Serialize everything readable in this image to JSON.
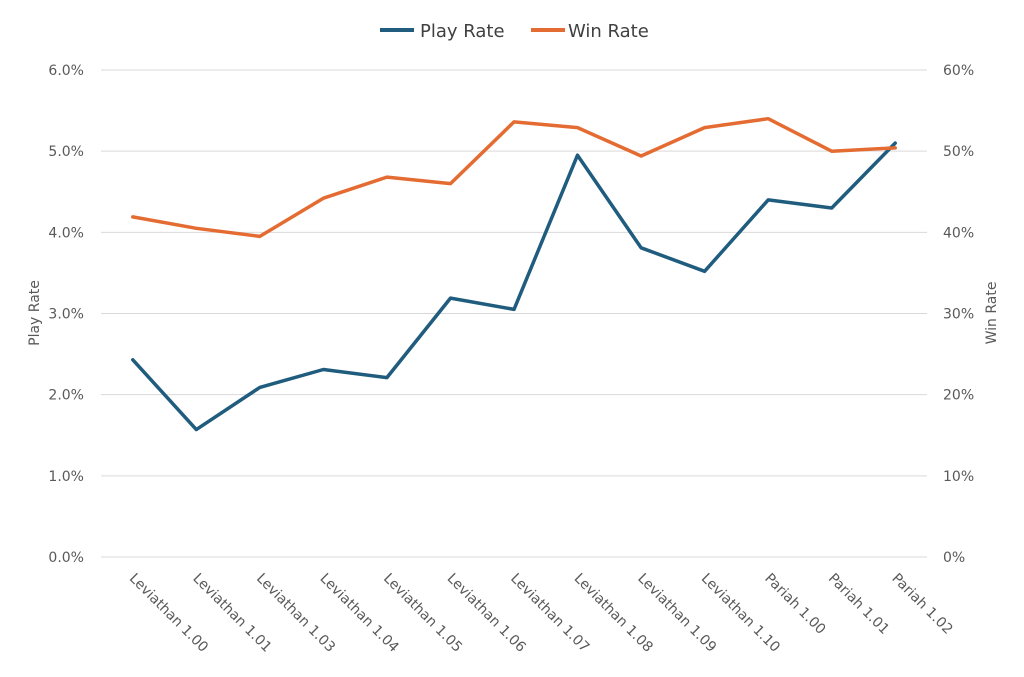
{
  "chart_data": {
    "type": "line",
    "categories": [
      "Leviathan 1.00",
      "Leviathan 1.01",
      "Leviathan 1.03",
      "Leviathan 1.04",
      "Leviathan 1.05",
      "Leviathan 1.06",
      "Leviathan 1.07",
      "Leviathan 1.08",
      "Leviathan 1.09",
      "Leviathan 1.10",
      "Pariah 1.00",
      "Pariah 1.01",
      "Pariah 1.02"
    ],
    "series": [
      {
        "name": "Play Rate",
        "axis": "left",
        "color": "#1f5c7e",
        "values": [
          2.43,
          1.57,
          2.09,
          2.31,
          2.21,
          3.19,
          3.05,
          4.95,
          3.81,
          3.52,
          4.4,
          4.3,
          5.1
        ]
      },
      {
        "name": "Win Rate",
        "axis": "right",
        "color": "#e46c32",
        "values": [
          41.9,
          40.5,
          39.5,
          44.2,
          46.8,
          46.0,
          53.6,
          52.9,
          49.4,
          52.9,
          54.0,
          50.0,
          50.4
        ]
      }
    ],
    "y_left": {
      "label": "Play Rate",
      "range": [
        0,
        6
      ],
      "ticks": [
        "0.0%",
        "1.0%",
        "2.0%",
        "3.0%",
        "4.0%",
        "5.0%",
        "6.0%"
      ]
    },
    "y_right": {
      "label": "Win Rate",
      "range": [
        0,
        60
      ],
      "ticks": [
        "0%",
        "10%",
        "20%",
        "30%",
        "40%",
        "50%",
        "60%"
      ]
    },
    "grid": true,
    "legend_position": "top"
  }
}
